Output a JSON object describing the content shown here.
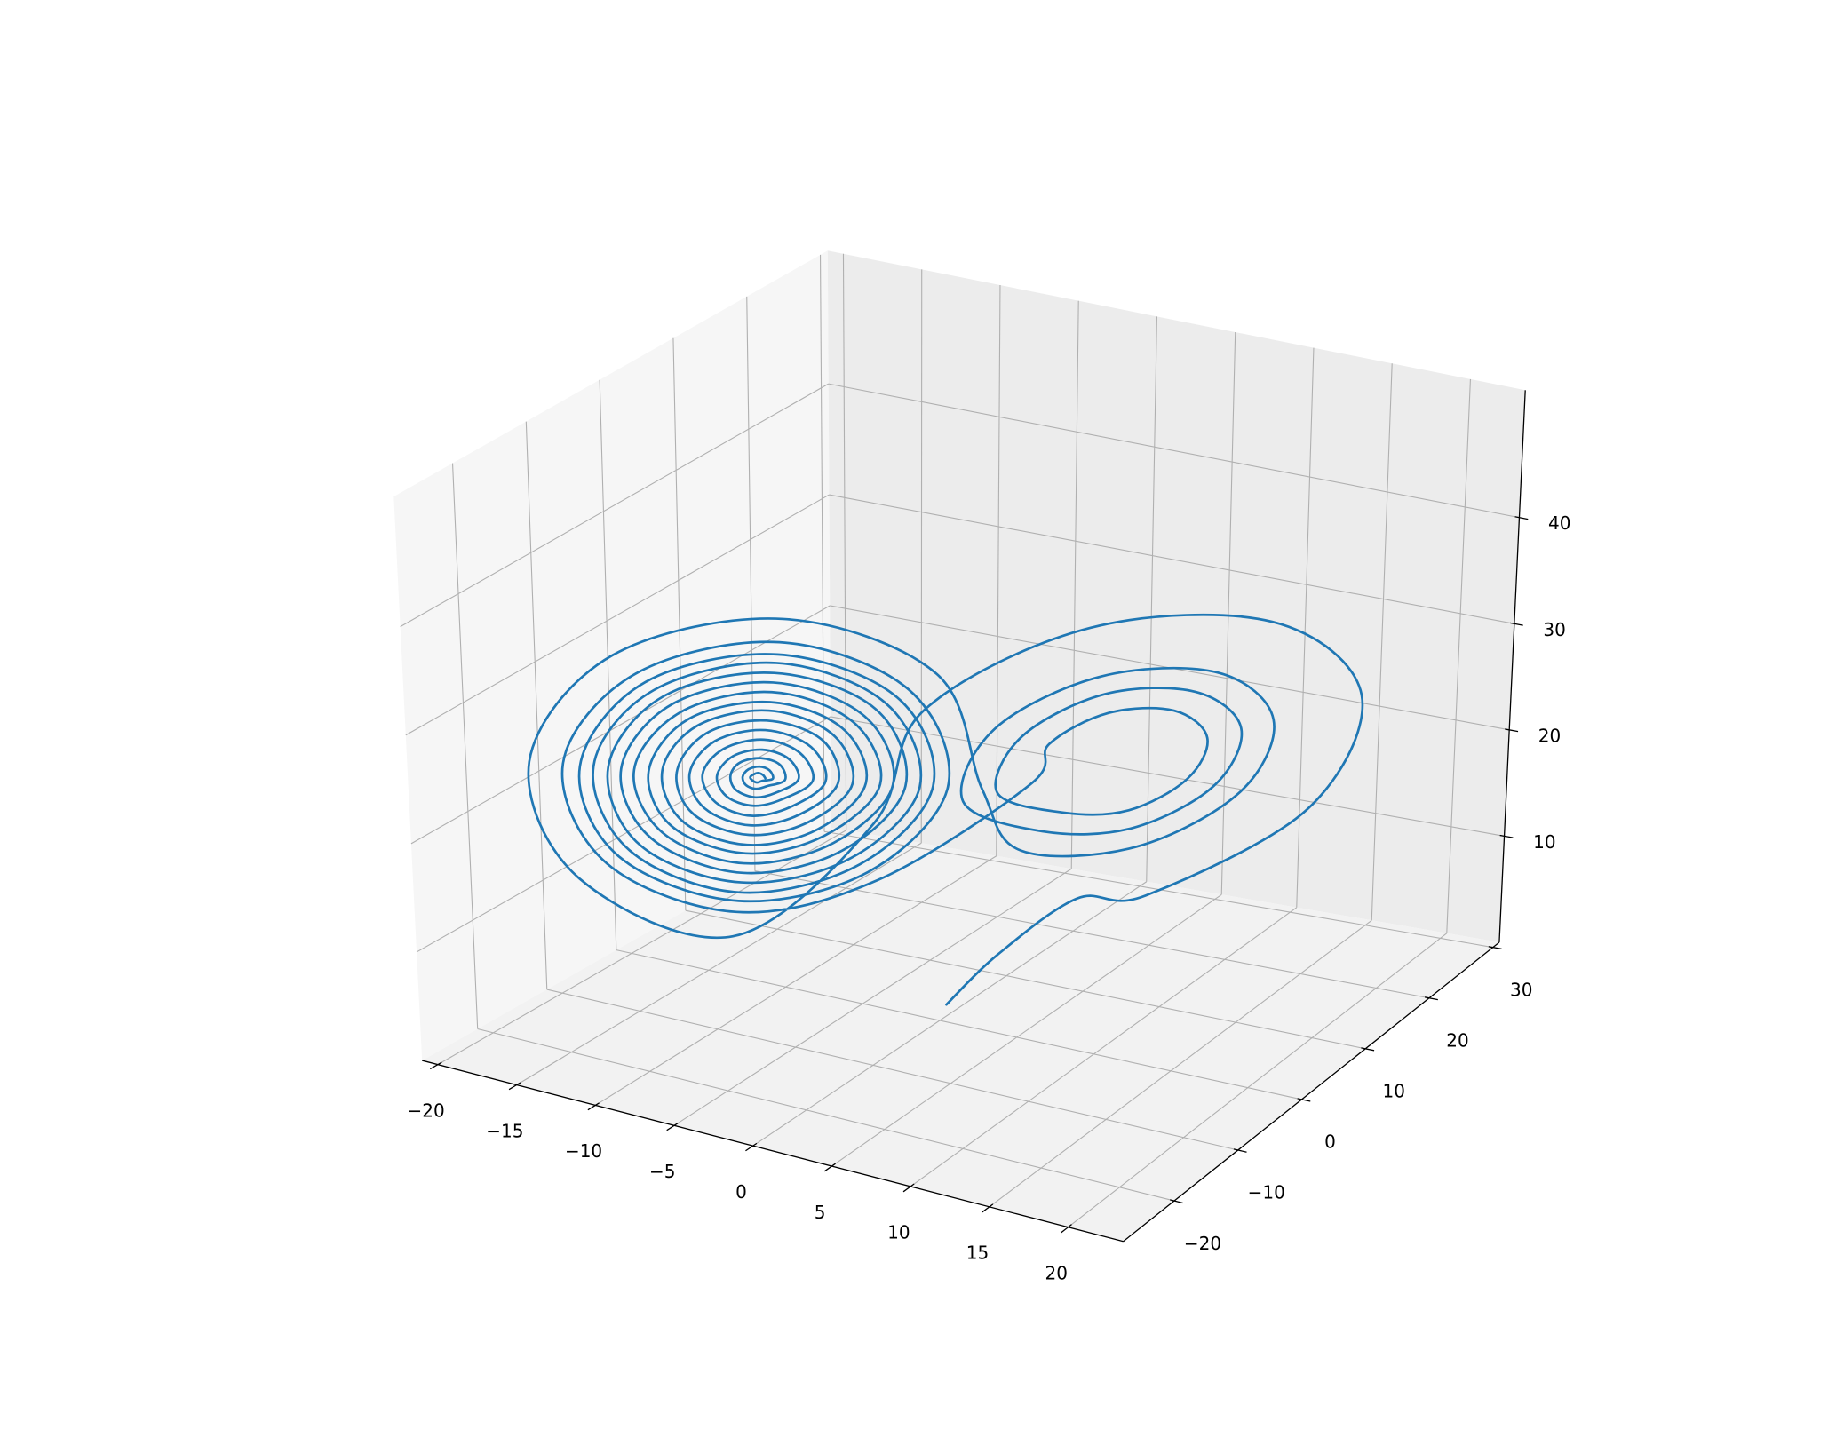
{
  "chart_data": {
    "type": "line3d",
    "series": [
      {
        "color": "#1f77b4",
        "x": [
          0,
          2,
          5,
          8,
          15.0,
          17.9,
          15.0,
          8,
          1.0,
          -1.9,
          -8,
          -14.4,
          -17,
          -14.4,
          -8,
          -1.6,
          1,
          3.5,
          8,
          12.5,
          14.3,
          12.5,
          8,
          3.5,
          1.7,
          4.5,
          8,
          11.5,
          13.0,
          11.5,
          8,
          4.5,
          3.1,
          5.5,
          8,
          10.5,
          11.6,
          10.5,
          8,
          5.5,
          4.4,
          -2.6,
          -8,
          -13.4,
          -15.7,
          -13.4,
          -8,
          -2.6,
          -0.4,
          -3.0,
          -8,
          -13.0,
          -15.0,
          -13.0,
          -8,
          -3.0,
          -1.0,
          -3.4,
          -8,
          -12.6,
          -14.5,
          -12.6,
          -8,
          -3.4,
          -1.5,
          -3.8,
          -8,
          -12.2,
          -13.9,
          -12.2,
          -8,
          -3.8,
          -2.1,
          -4.2,
          -8,
          -11.8,
          -13.4,
          -11.8,
          -8,
          -4.2,
          -2.6,
          -4.6,
          -8,
          -11.4,
          -12.9,
          -11.4,
          -8,
          -4.6,
          -3.1,
          -5.0,
          -8,
          -11.1,
          -12.3,
          -11.1,
          -8,
          -5.0,
          -3.7,
          -5.3,
          -8,
          -10.7,
          -11.8,
          -10.7,
          -8,
          -5.3,
          -4.2,
          -5.7,
          -8,
          -10.3,
          -11.2,
          -10.3,
          -8,
          -5.7,
          -4.8,
          -6.1,
          -8,
          -9.9,
          -10.7,
          -9.9,
          -8,
          -6.1,
          -5.3,
          -6.5,
          -8,
          -9.5,
          -10.2,
          -9.5,
          -8,
          -6.5,
          -5.8,
          -6.9,
          -8,
          -9.1,
          -9.6,
          -9.1,
          -8,
          -6.9,
          -6.4,
          -7.2,
          -8,
          -8.8,
          -9.1,
          -8.8,
          -8,
          -7.2,
          -6.9,
          -7.6,
          -8,
          -8.4,
          -8.6,
          -8.4,
          -8,
          -7.6,
          -7.4,
          -7.8,
          -8,
          -8.2,
          -8.3,
          -8.2,
          -8,
          -7.8,
          -7.7
        ],
        "y": [
          1,
          4,
          9,
          12.4,
          20.4,
          21.2,
          14.2,
          3.6,
          -4.4,
          -5.2,
          -12,
          -19.3,
          -20,
          -13.7,
          -4,
          3.3,
          4,
          4.0,
          10.8,
          15.9,
          16.4,
          12.0,
          5.2,
          0.1,
          -0.4,
          4.9,
          10.2,
          14.2,
          14.6,
          11.1,
          5.8,
          1.8,
          1.4,
          5.7,
          9.6,
          12.5,
          12.8,
          10.3,
          6.4,
          3.5,
          3.2,
          -3.2,
          -11.4,
          -17.6,
          -18.2,
          -12.8,
          -4.6,
          1.6,
          2.2,
          -3.6,
          -11.1,
          -16.8,
          -17.4,
          -12.4,
          -4.9,
          0.8,
          1.4,
          -3.9,
          -10.9,
          -16.1,
          -16.6,
          -12.1,
          -5.1,
          0.1,
          0.6,
          -4.3,
          -10.6,
          -15.5,
          -15.9,
          -11.7,
          -5.4,
          -0.5,
          -0.1,
          -4.6,
          -10.4,
          -14.8,
          -15.2,
          -11.4,
          -5.6,
          -1.2,
          -0.8,
          -4.9,
          -10.2,
          -14.1,
          -14.5,
          -11.1,
          -5.8,
          -1.9,
          -1.5,
          -5.3,
          -9.9,
          -13.4,
          -13.8,
          -10.7,
          -6.1,
          -2.6,
          -2.2,
          -5.6,
          -9.7,
          -12.8,
          -13.0,
          -10.4,
          -6.3,
          -3.3,
          -3.0,
          -6.0,
          -9.4,
          -12.1,
          -12.3,
          -10.0,
          -6.6,
          -3.9,
          -3.7,
          -6.3,
          -9.2,
          -11.4,
          -11.6,
          -9.7,
          -6.8,
          -4.6,
          -4.4,
          -6.6,
          -9.0,
          -10.7,
          -10.9,
          -9.4,
          -7.0,
          -5.3,
          -5.1,
          -7.0,
          -8.7,
          -10.0,
          -10.2,
          -9.0,
          -7.3,
          -6.0,
          -5.8,
          -7.3,
          -8.5,
          -9.4,
          -9.4,
          -8.7,
          -7.5,
          -6.6,
          -6.6,
          -7.6,
          -8.3,
          -8.8,
          -8.8,
          -8.4,
          -7.7,
          -7.2,
          -7.2,
          -7.8,
          -8.1,
          -8.3,
          -8.4,
          -8.2,
          -7.9,
          -7.7,
          -7.6
        ],
        "z": [
          1.05,
          5,
          9,
          8.7,
          15.2,
          26.3,
          35.4,
          37.3,
          30.8,
          19.7,
          10,
          15.9,
          26,
          34.3,
          36,
          30.1,
          20,
          15.1,
          13.9,
          18.1,
          25.1,
          30.9,
          32.1,
          28.0,
          20.9,
          16.8,
          15.9,
          19.1,
          24.7,
          29.2,
          30.2,
          26.9,
          21.4,
          18.5,
          17.8,
          20.2,
          24.2,
          27.5,
          28.2,
          25.8,
          21.8,
          13.4,
          12.0,
          17.0,
          25.6,
          32.6,
          34.1,
          29.0,
          20.5,
          14.2,
          12.9,
          17.5,
          25.3,
          31.8,
          33.1,
          28.5,
          20.7,
          14.9,
          13.6,
          17.9,
          25.2,
          31.1,
          32.4,
          28.1,
          20.8,
          15.5,
          14.4,
          18.3,
          25.0,
          30.5,
          31.6,
          27.7,
          21.0,
          16.2,
          15.2,
          18.8,
          24.8,
          29.8,
          30.8,
          27.2,
          21.2,
          16.9,
          16.0,
          19.2,
          24.6,
          29.1,
          30.0,
          26.8,
          21.4,
          17.6,
          16.8,
          19.6,
          24.4,
          28.4,
          29.2,
          26.4,
          21.6,
          18.2,
          17.5,
          20.0,
          24.3,
          27.8,
          28.5,
          26.0,
          21.7,
          18.9,
          18.3,
          20.5,
          24.1,
          27.1,
          27.7,
          25.6,
          21.9,
          19.6,
          19.1,
          20.9,
          23.9,
          26.4,
          26.9,
          25.1,
          22.1,
          20.3,
          19.9,
          21.3,
          23.7,
          25.7,
          26.1,
          24.7,
          22.3,
          21.0,
          20.7,
          21.7,
          23.5,
          25.0,
          25.3,
          24.3,
          22.5,
          21.6,
          21.4,
          22.2,
          23.4,
          24.4,
          24.6,
          23.9,
          22.6,
          22.2,
          22.1,
          22.5,
          23.2,
          23.8,
          23.9,
          23.5,
          22.8,
          22.7,
          22.6,
          22.8,
          23.1,
          23.3,
          23.4,
          23.2,
          22.9
        ]
      }
    ],
    "xlim": [
      -21,
      23.5
    ],
    "ylim": [
      -28,
      31
    ],
    "zlim": [
      0,
      52
    ],
    "xticks": [
      {
        "value": -20,
        "label": "−20"
      },
      {
        "value": -15,
        "label": "−15"
      },
      {
        "value": -10,
        "label": "−10"
      },
      {
        "value": -5,
        "label": "−5"
      },
      0,
      5,
      10,
      15,
      20
    ],
    "yticks": [
      {
        "value": -20,
        "label": "−20"
      },
      {
        "value": -10,
        "label": "−10"
      },
      0,
      10,
      20,
      30
    ],
    "zticks": [
      10,
      20,
      30,
      40
    ],
    "grid": true
  }
}
